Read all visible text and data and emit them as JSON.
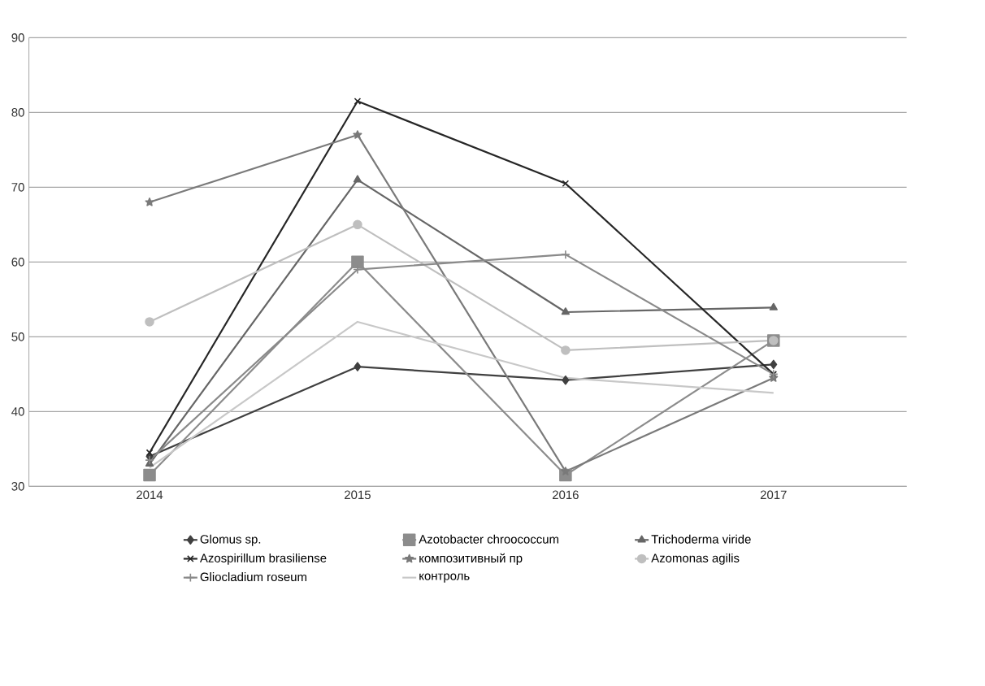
{
  "chart_data": {
    "type": "line",
    "categories": [
      "2014",
      "2015",
      "2016",
      "2017"
    ],
    "ylim": [
      30,
      90
    ],
    "yticks": [
      30,
      40,
      50,
      60,
      70,
      80,
      90
    ],
    "grid": "y",
    "legend": "bottom",
    "line_style": "solid",
    "series": [
      {
        "name": "Glomus sp.",
        "color": "#404040",
        "marker": "diamond",
        "values": [
          34,
          46,
          44.2,
          46.3
        ]
      },
      {
        "name": "Azotobacter chroococcum",
        "color": "#8c8c8c",
        "marker": "square",
        "values": [
          31.5,
          60,
          31.5,
          49.5
        ]
      },
      {
        "name": "Trichoderma viride",
        "color": "#666666",
        "marker": "triangle",
        "values": [
          33,
          71,
          53.3,
          53.9
        ]
      },
      {
        "name": "Azospirillum brasiliense",
        "color": "#262626",
        "marker": "cross",
        "values": [
          34.5,
          81.5,
          70.5,
          45
        ]
      },
      {
        "name": "композитивный пр",
        "color": "#7a7a7a",
        "marker": "star",
        "values": [
          68,
          77,
          32,
          44.5
        ]
      },
      {
        "name": "Azomonas agilis",
        "color": "#bfbfbf",
        "marker": "circle",
        "values": [
          52,
          65,
          48.2,
          49.5
        ]
      },
      {
        "name": "Gliocladium roseum",
        "color": "#8a8a8a",
        "marker": "plus",
        "values": [
          33.5,
          59,
          61,
          45
        ]
      },
      {
        "name": "контроль",
        "color": "#c8c8c8",
        "marker": "none",
        "values": [
          32.5,
          52,
          44.5,
          42.5
        ]
      }
    ]
  }
}
